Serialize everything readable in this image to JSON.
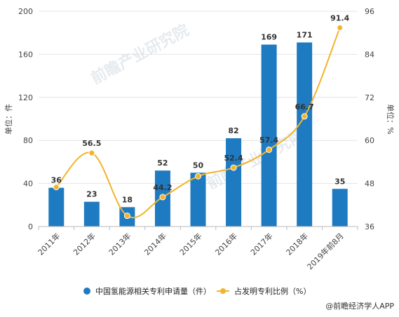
{
  "chart_data": {
    "type": "bar",
    "categories": [
      "2011年",
      "2012年",
      "2013年",
      "2014年",
      "2015年",
      "2016年",
      "2017年",
      "2018年",
      "2019年前8月"
    ],
    "series": [
      {
        "name": "中国氢能源相关专利申请量（件）",
        "type": "bar",
        "axis": "left",
        "color": "#1f7bc1",
        "values": [
          36,
          23,
          18,
          52,
          50,
          82,
          169,
          171,
          35
        ],
        "labels": [
          "36",
          "23",
          "18",
          "52",
          "50",
          "82",
          "169",
          "171",
          "35"
        ]
      },
      {
        "name": "占发明专利比例（%）",
        "type": "line",
        "axis": "right",
        "color": "#f2b42c",
        "values": [
          47,
          56.5,
          39,
          44.2,
          50,
          52.4,
          57.4,
          66.7,
          91.4
        ],
        "labels": [
          "",
          "56.5",
          "",
          "44.2",
          "",
          "52.4",
          "57.4",
          "66.7",
          "91.4"
        ]
      }
    ],
    "ylabel": "单位：件",
    "y2label": "单位：%",
    "ylim": [
      0,
      200
    ],
    "y2lim": [
      36,
      96
    ],
    "yticks": [
      "0",
      "40",
      "80",
      "120",
      "160",
      "200"
    ],
    "y2ticks": [
      "36",
      "48",
      "60",
      "72",
      "84",
      "96"
    ],
    "grid": true,
    "legend_position": "bottom",
    "source": "@前瞻经济学人APP",
    "watermark": "前瞻产业研究院"
  }
}
